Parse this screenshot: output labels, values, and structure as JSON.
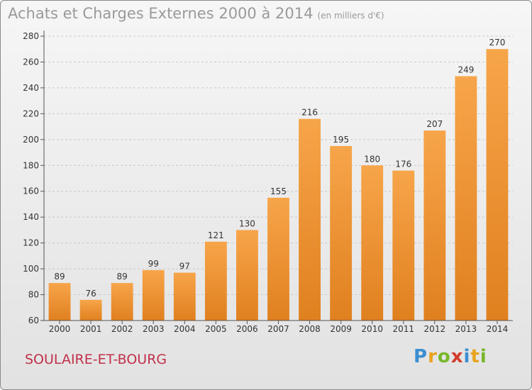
{
  "header": {
    "title": "Achats et Charges Externes 2000 à 2014",
    "subtitle": "(en milliers d'€)"
  },
  "commune": "SOULAIRE-ET-BOURG",
  "logo": {
    "letters": [
      "P",
      "r",
      "o",
      "x",
      "i",
      "t",
      "i"
    ],
    "colors": [
      "#3b8fd1",
      "#e8a31d",
      "#78b72a",
      "#d33b2c",
      "#3b8fd1",
      "#e8a31d",
      "#78b72a"
    ]
  },
  "chart_data": {
    "type": "bar",
    "categories": [
      "2000",
      "2001",
      "2002",
      "2003",
      "2004",
      "2005",
      "2006",
      "2007",
      "2008",
      "2009",
      "2010",
      "2011",
      "2012",
      "2013",
      "2014"
    ],
    "values": [
      89,
      76,
      89,
      99,
      97,
      121,
      130,
      155,
      216,
      195,
      180,
      176,
      207,
      249,
      270
    ],
    "ylim": [
      60,
      280
    ],
    "yticks": [
      60,
      80,
      100,
      120,
      140,
      160,
      180,
      200,
      220,
      240,
      260,
      280
    ],
    "grid": true,
    "bar_color_light": "#f7a54a",
    "bar_color_dark": "#e0801f"
  }
}
